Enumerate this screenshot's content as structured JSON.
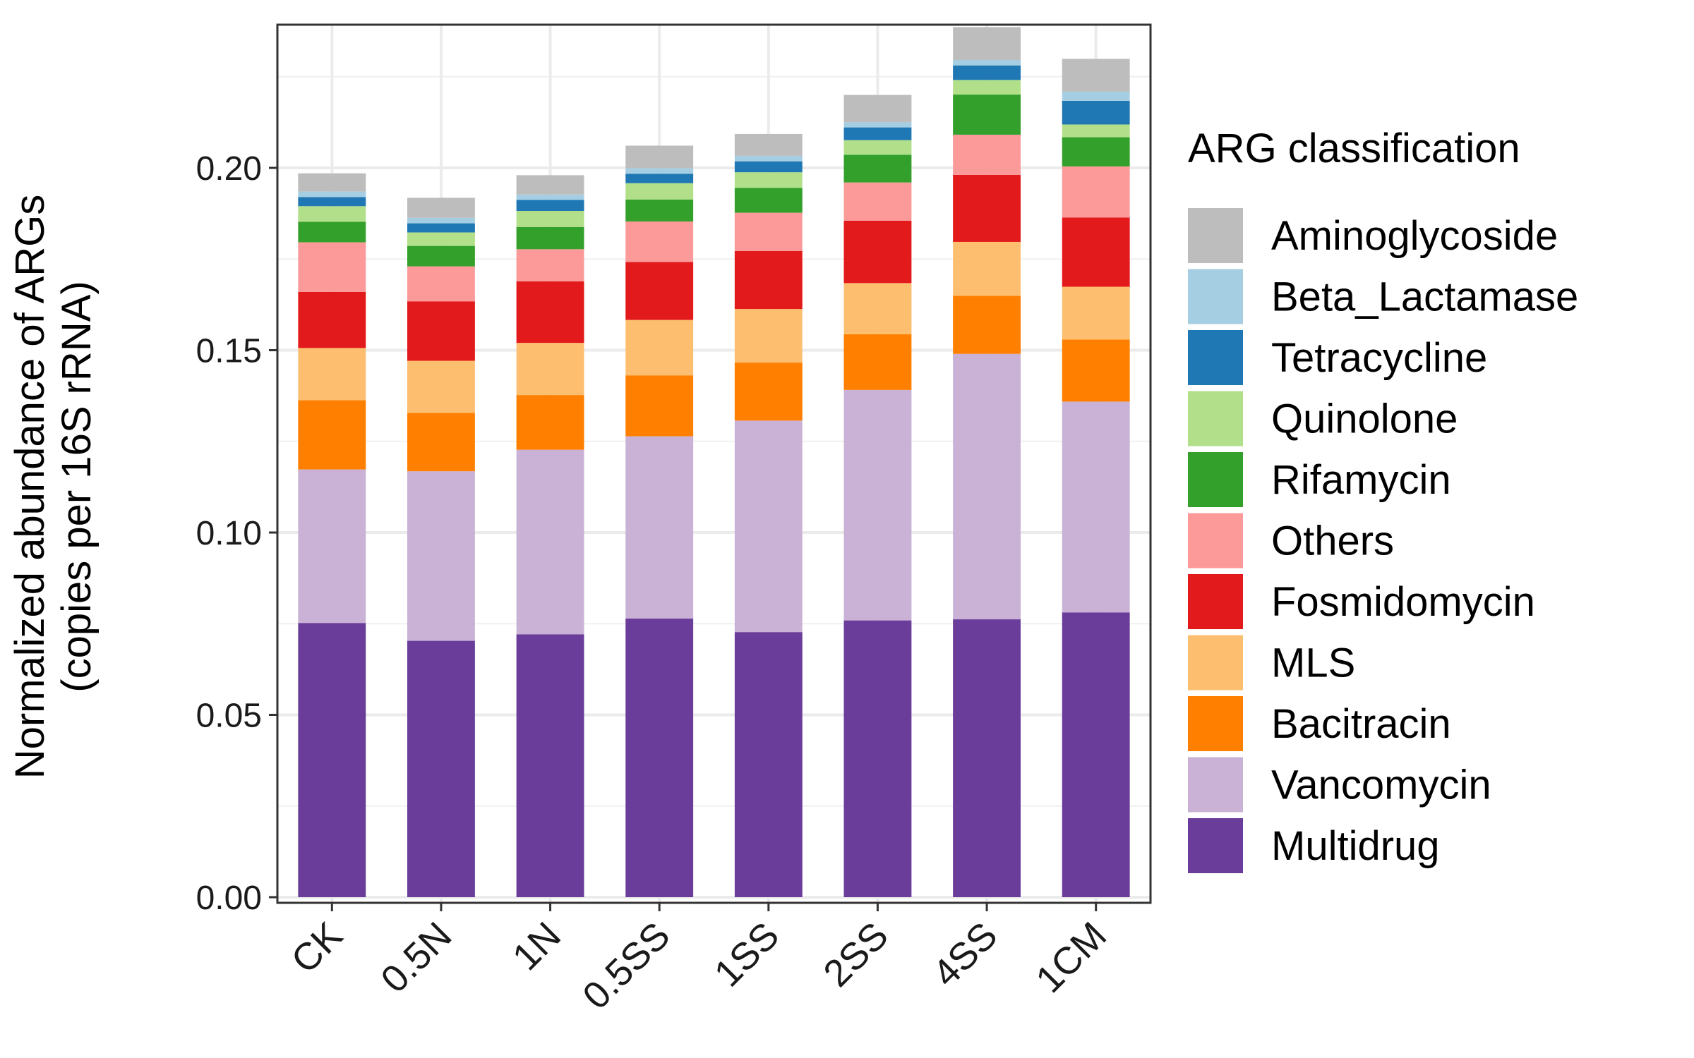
{
  "chart_data": {
    "type": "bar",
    "stacked": true,
    "categories": [
      "CK",
      "0.5N",
      "1N",
      "0.5SS",
      "1SS",
      "2SS",
      "4SS",
      "1CM"
    ],
    "ylabel_line1": "Normalized abundance of ARGs",
    "ylabel_line2": "(copies per 16S rRNA)",
    "xlabel": "",
    "ylim": [
      0,
      0.24
    ],
    "yticks": [
      "0.00",
      "0.05",
      "0.10",
      "0.15",
      "0.20"
    ],
    "ytick_values": [
      0,
      0.05,
      0.1,
      0.15,
      0.2
    ],
    "grid": true,
    "legend": {
      "title": "ARG classification",
      "position": "right"
    },
    "series": [
      {
        "name": "Multidrug",
        "color": "#6a3d9a",
        "values": [
          0.0752,
          0.0703,
          0.0721,
          0.0764,
          0.0727,
          0.0759,
          0.0762,
          0.0781
        ]
      },
      {
        "name": "Vancomycin",
        "color": "#cab2d6",
        "values": [
          0.0421,
          0.0465,
          0.0506,
          0.05,
          0.058,
          0.0632,
          0.0728,
          0.0578
        ]
      },
      {
        "name": "Bacitracin",
        "color": "#ff7f00",
        "values": [
          0.019,
          0.016,
          0.015,
          0.0167,
          0.0159,
          0.0153,
          0.0159,
          0.017
        ]
      },
      {
        "name": "MLS",
        "color": "#fdbf6f",
        "values": [
          0.0143,
          0.0143,
          0.0143,
          0.0152,
          0.0147,
          0.014,
          0.0148,
          0.0145
        ]
      },
      {
        "name": "Fosmidomycin",
        "color": "#e31a1c",
        "values": [
          0.0154,
          0.0163,
          0.0169,
          0.0159,
          0.0159,
          0.0171,
          0.0184,
          0.019
        ]
      },
      {
        "name": "Others",
        "color": "#fb9a99",
        "values": [
          0.0136,
          0.0096,
          0.0088,
          0.0111,
          0.0105,
          0.0105,
          0.011,
          0.014
        ]
      },
      {
        "name": "Rifamycin",
        "color": "#33a02c",
        "values": [
          0.0056,
          0.0056,
          0.0061,
          0.006,
          0.0068,
          0.0076,
          0.011,
          0.008
        ]
      },
      {
        "name": "Quinolone",
        "color": "#b2df8a",
        "values": [
          0.0043,
          0.0037,
          0.0044,
          0.0045,
          0.0043,
          0.004,
          0.004,
          0.0035
        ]
      },
      {
        "name": "Tetracycline",
        "color": "#1f78b4",
        "values": [
          0.0025,
          0.0025,
          0.003,
          0.0026,
          0.003,
          0.0035,
          0.004,
          0.0065
        ]
      },
      {
        "name": "Beta_Lactamase",
        "color": "#a6cee3",
        "values": [
          0.0015,
          0.0015,
          0.0015,
          0.0015,
          0.0015,
          0.0014,
          0.0015,
          0.0025
        ]
      },
      {
        "name": "Aminoglycoside",
        "color": "#bdbdbd",
        "values": [
          0.005,
          0.0055,
          0.0053,
          0.0062,
          0.006,
          0.0075,
          0.009,
          0.009
        ]
      }
    ]
  }
}
